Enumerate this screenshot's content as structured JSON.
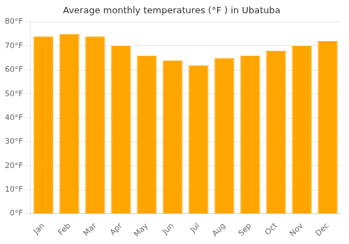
{
  "chart_data": {
    "type": "bar",
    "title": "Average monthly temperatures (°F ) in Ubatuba",
    "categories": [
      "Jan",
      "Feb",
      "Mar",
      "Apr",
      "May",
      "Jun",
      "Jul",
      "Aug",
      "Sep",
      "Oct",
      "Nov",
      "Dec"
    ],
    "values": [
      74,
      75,
      74,
      70,
      66,
      64,
      62,
      65,
      66,
      68,
      70,
      72
    ],
    "color": "#FFA500",
    "ylim": [
      0,
      80
    ],
    "yticks": [
      {
        "value": 0,
        "label": "0°F"
      },
      {
        "value": 10,
        "label": "10°F"
      },
      {
        "value": 20,
        "label": "20°F"
      },
      {
        "value": 30,
        "label": "30°F"
      },
      {
        "value": 40,
        "label": "40°F"
      },
      {
        "value": 50,
        "label": "50°F"
      },
      {
        "value": 60,
        "label": "60°F"
      },
      {
        "value": 70,
        "label": "70°F"
      },
      {
        "value": 80,
        "label": "80°F"
      }
    ],
    "grid": true
  }
}
